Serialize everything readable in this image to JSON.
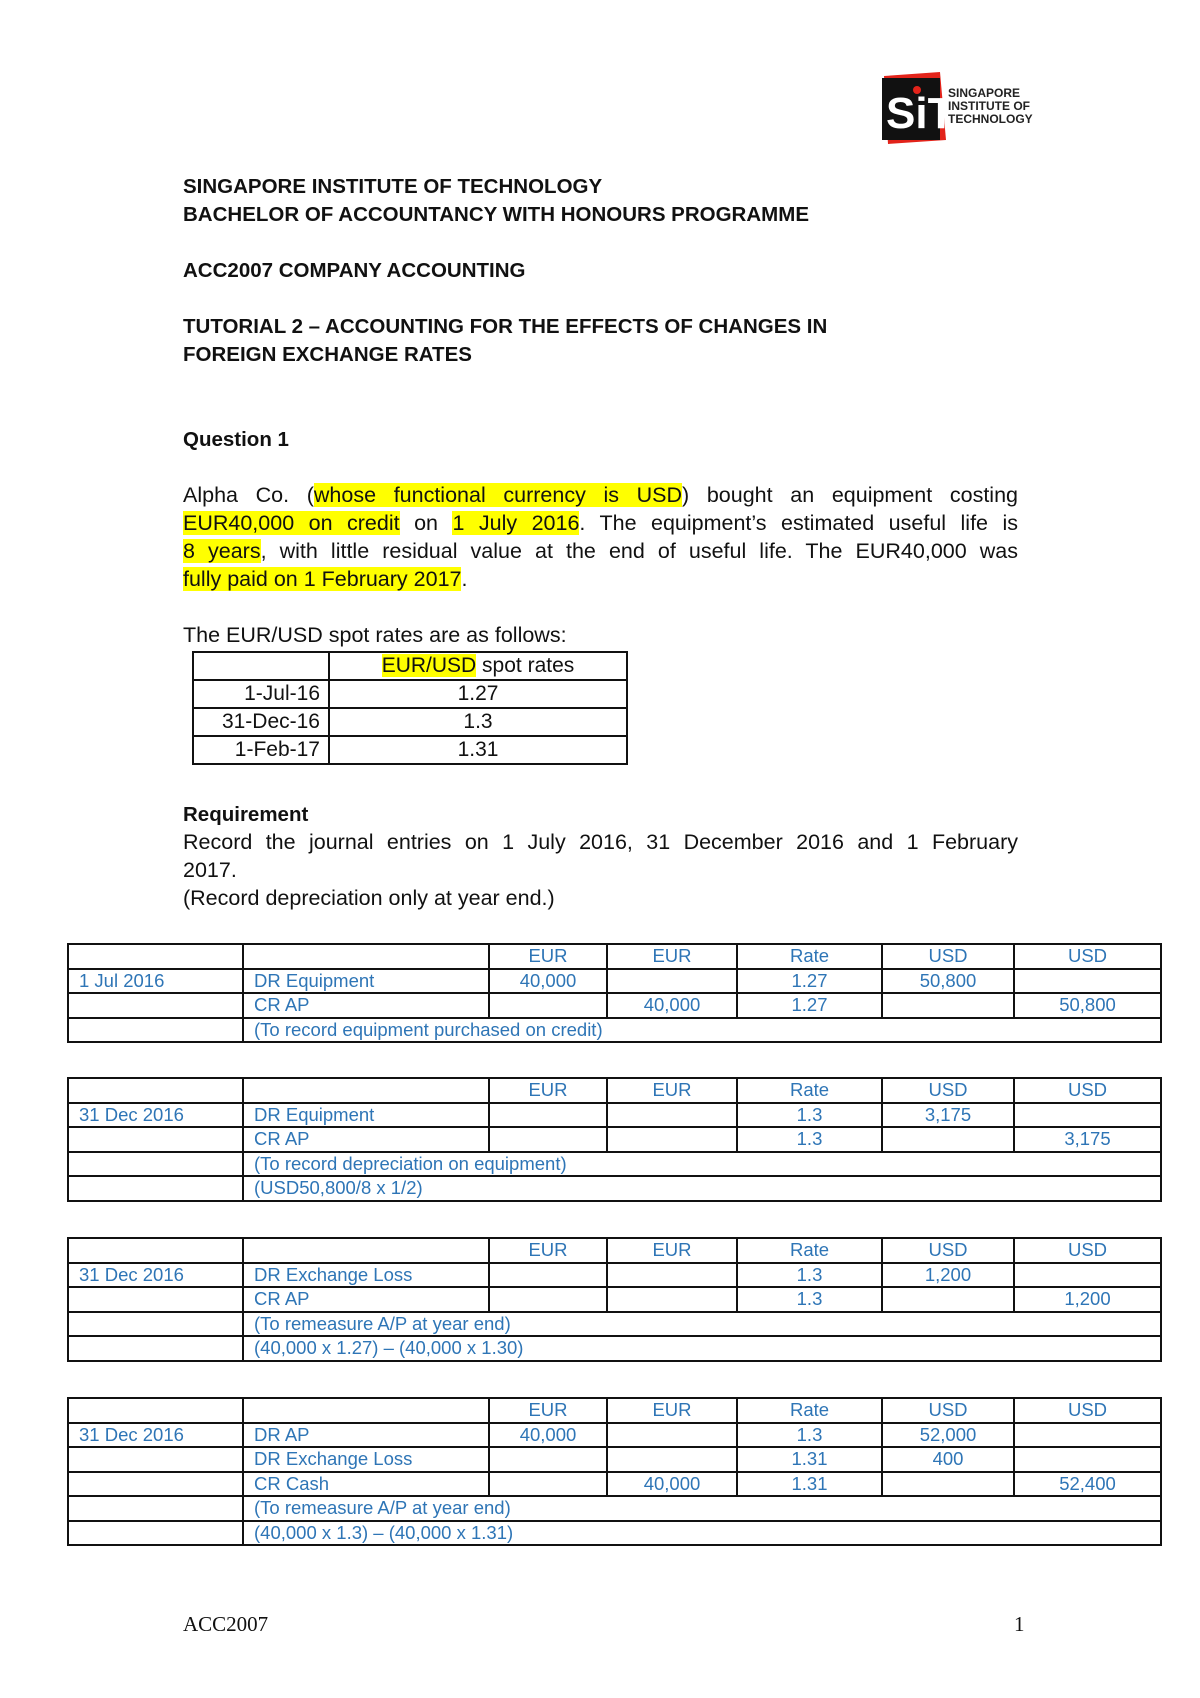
{
  "logo": {
    "mark": "SiT",
    "text_lines": [
      "SINGAPORE",
      "INSTITUTE OF",
      "TECHNOLOGY"
    ],
    "colors": {
      "red": "#e2231a",
      "black": "#111111"
    }
  },
  "header": {
    "institution": "SINGAPORE INSTITUTE OF TECHNOLOGY",
    "programme": "BACHELOR OF ACCOUNTANCY WITH HONOURS PROGRAMME",
    "course": "ACC2007 COMPANY ACCOUNTING",
    "tutorial_line1": "TUTORIAL 2 – ACCOUNTING FOR THE EFFECTS OF CHANGES IN",
    "tutorial_line2": "FOREIGN EXCHANGE RATES"
  },
  "question": {
    "title": "Question 1",
    "p": {
      "s1": "Alpha Co. (",
      "h1": "whose functional currency is USD",
      "s2": ") bought an equipment costing",
      "h2": "EUR40,000 on credit",
      "s3": " on ",
      "h3": "1 July 2016",
      "s4": ". The equipment’s estimated useful life is",
      "h4": "8 years",
      "s5": ", with little residual value at the end of useful life. The EUR40,000 was",
      "h5": "fully paid on 1 February 2017",
      "s6": "."
    },
    "spot_intro": "The EUR/USD spot rates are as follows:",
    "spot_table": {
      "header_highlight": "EUR/USD",
      "header_rest": " spot rates",
      "rows": [
        {
          "date": "1-Jul-16",
          "rate": "1.27"
        },
        {
          "date": "31-Dec-16",
          "rate": "1.3"
        },
        {
          "date": "1-Feb-17",
          "rate": "1.31"
        }
      ]
    },
    "requirement_title": "Requirement",
    "requirement_line1": "Record the journal entries on 1 July 2016, 31 December 2016 and 1 February",
    "requirement_line2": "2017.",
    "requirement_line3": "(Record depreciation only at year end.)"
  },
  "journal_color": "#2e75b6",
  "journals": [
    {
      "header": [
        "",
        "",
        "EUR",
        "EUR",
        "Rate",
        "USD",
        "USD"
      ],
      "rows": [
        [
          "1 Jul 2016",
          "DR Equipment",
          "40,000",
          "",
          "1.27",
          "50,800",
          ""
        ],
        [
          "",
          "CR AP",
          "",
          "40,000",
          "1.27",
          "",
          "50,800"
        ]
      ],
      "notes": [
        "(To record equipment purchased on credit)"
      ]
    },
    {
      "header": [
        "",
        "",
        "EUR",
        "EUR",
        "Rate",
        "USD",
        "USD"
      ],
      "rows": [
        [
          "31 Dec 2016",
          "DR Equipment",
          "",
          "",
          "1.3",
          "3,175",
          ""
        ],
        [
          "",
          "CR AP",
          "",
          "",
          "1.3",
          "",
          "3,175"
        ]
      ],
      "notes": [
        "(To record depreciation on equipment)",
        "(USD50,800/8 x 1/2)"
      ]
    },
    {
      "header": [
        "",
        "",
        "EUR",
        "EUR",
        "Rate",
        "USD",
        "USD"
      ],
      "rows": [
        [
          "31 Dec 2016",
          "DR Exchange Loss",
          "",
          "",
          "1.3",
          "1,200",
          ""
        ],
        [
          "",
          "CR AP",
          "",
          "",
          "1.3",
          "",
          "1,200"
        ]
      ],
      "notes": [
        "(To remeasure A/P at year end)",
        "(40,000 x 1.27) – (40,000 x 1.30)"
      ]
    },
    {
      "header": [
        "",
        "",
        "EUR",
        "EUR",
        "Rate",
        "USD",
        "USD"
      ],
      "rows": [
        [
          "31 Dec 2016",
          "DR AP",
          "40,000",
          "",
          "1.3",
          "52,000",
          ""
        ],
        [
          "",
          "DR Exchange Loss",
          "",
          "",
          "1.31",
          "400",
          ""
        ],
        [
          "",
          "CR Cash",
          "",
          "40,000",
          "1.31",
          "",
          "52,400"
        ]
      ],
      "notes": [
        "(To remeasure A/P at year end)",
        "(40,000 x 1.3) – (40,000 x 1.31)"
      ]
    }
  ],
  "footer": {
    "left": "ACC2007",
    "page": "1"
  }
}
